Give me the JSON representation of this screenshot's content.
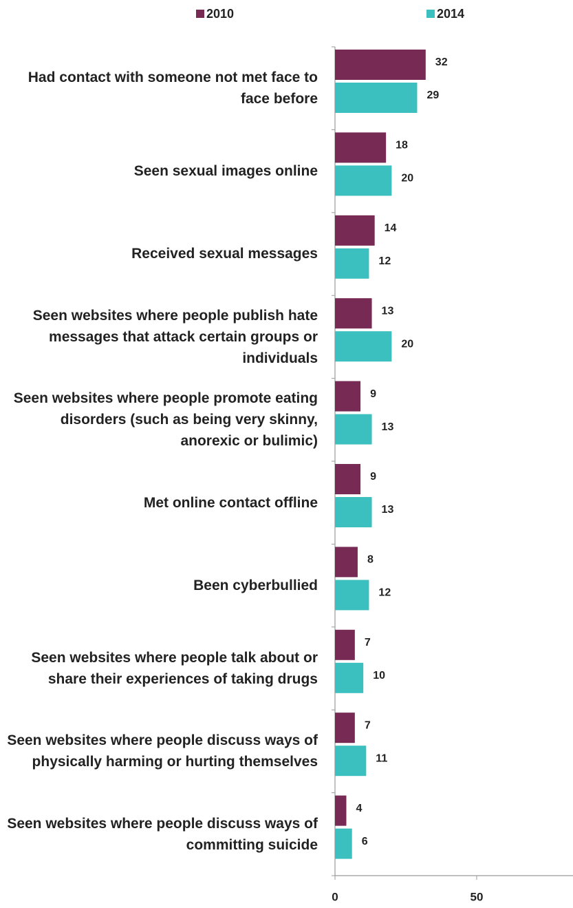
{
  "chart_data": {
    "type": "bar",
    "orientation": "horizontal",
    "categories": [
      "Had contact with someone not met face to face before",
      "Seen sexual images online",
      "Received sexual messages",
      "Seen websites where people publish hate messages that attack certain groups or individuals",
      "Seen websites where people promote eating disorders (such as being very skinny, anorexic or bulimic)",
      "Met online contact offline",
      "Been cyberbullied",
      "Seen websites where people talk about or share their experiences of taking drugs",
      "Seen websites where people discuss ways of physically harming or hurting themselves",
      "Seen websites where people discuss ways of committing suicide"
    ],
    "series": [
      {
        "name": "2010",
        "color": "#772a53",
        "values": [
          32,
          18,
          14,
          13,
          9,
          9,
          8,
          7,
          7,
          4
        ]
      },
      {
        "name": "2014",
        "color": "#3cbfbf",
        "values": [
          29,
          20,
          12,
          20,
          13,
          13,
          12,
          10,
          11,
          6
        ]
      }
    ],
    "xlim": [
      0,
      84
    ],
    "xticks": [
      0,
      50
    ],
    "legend": "top"
  }
}
